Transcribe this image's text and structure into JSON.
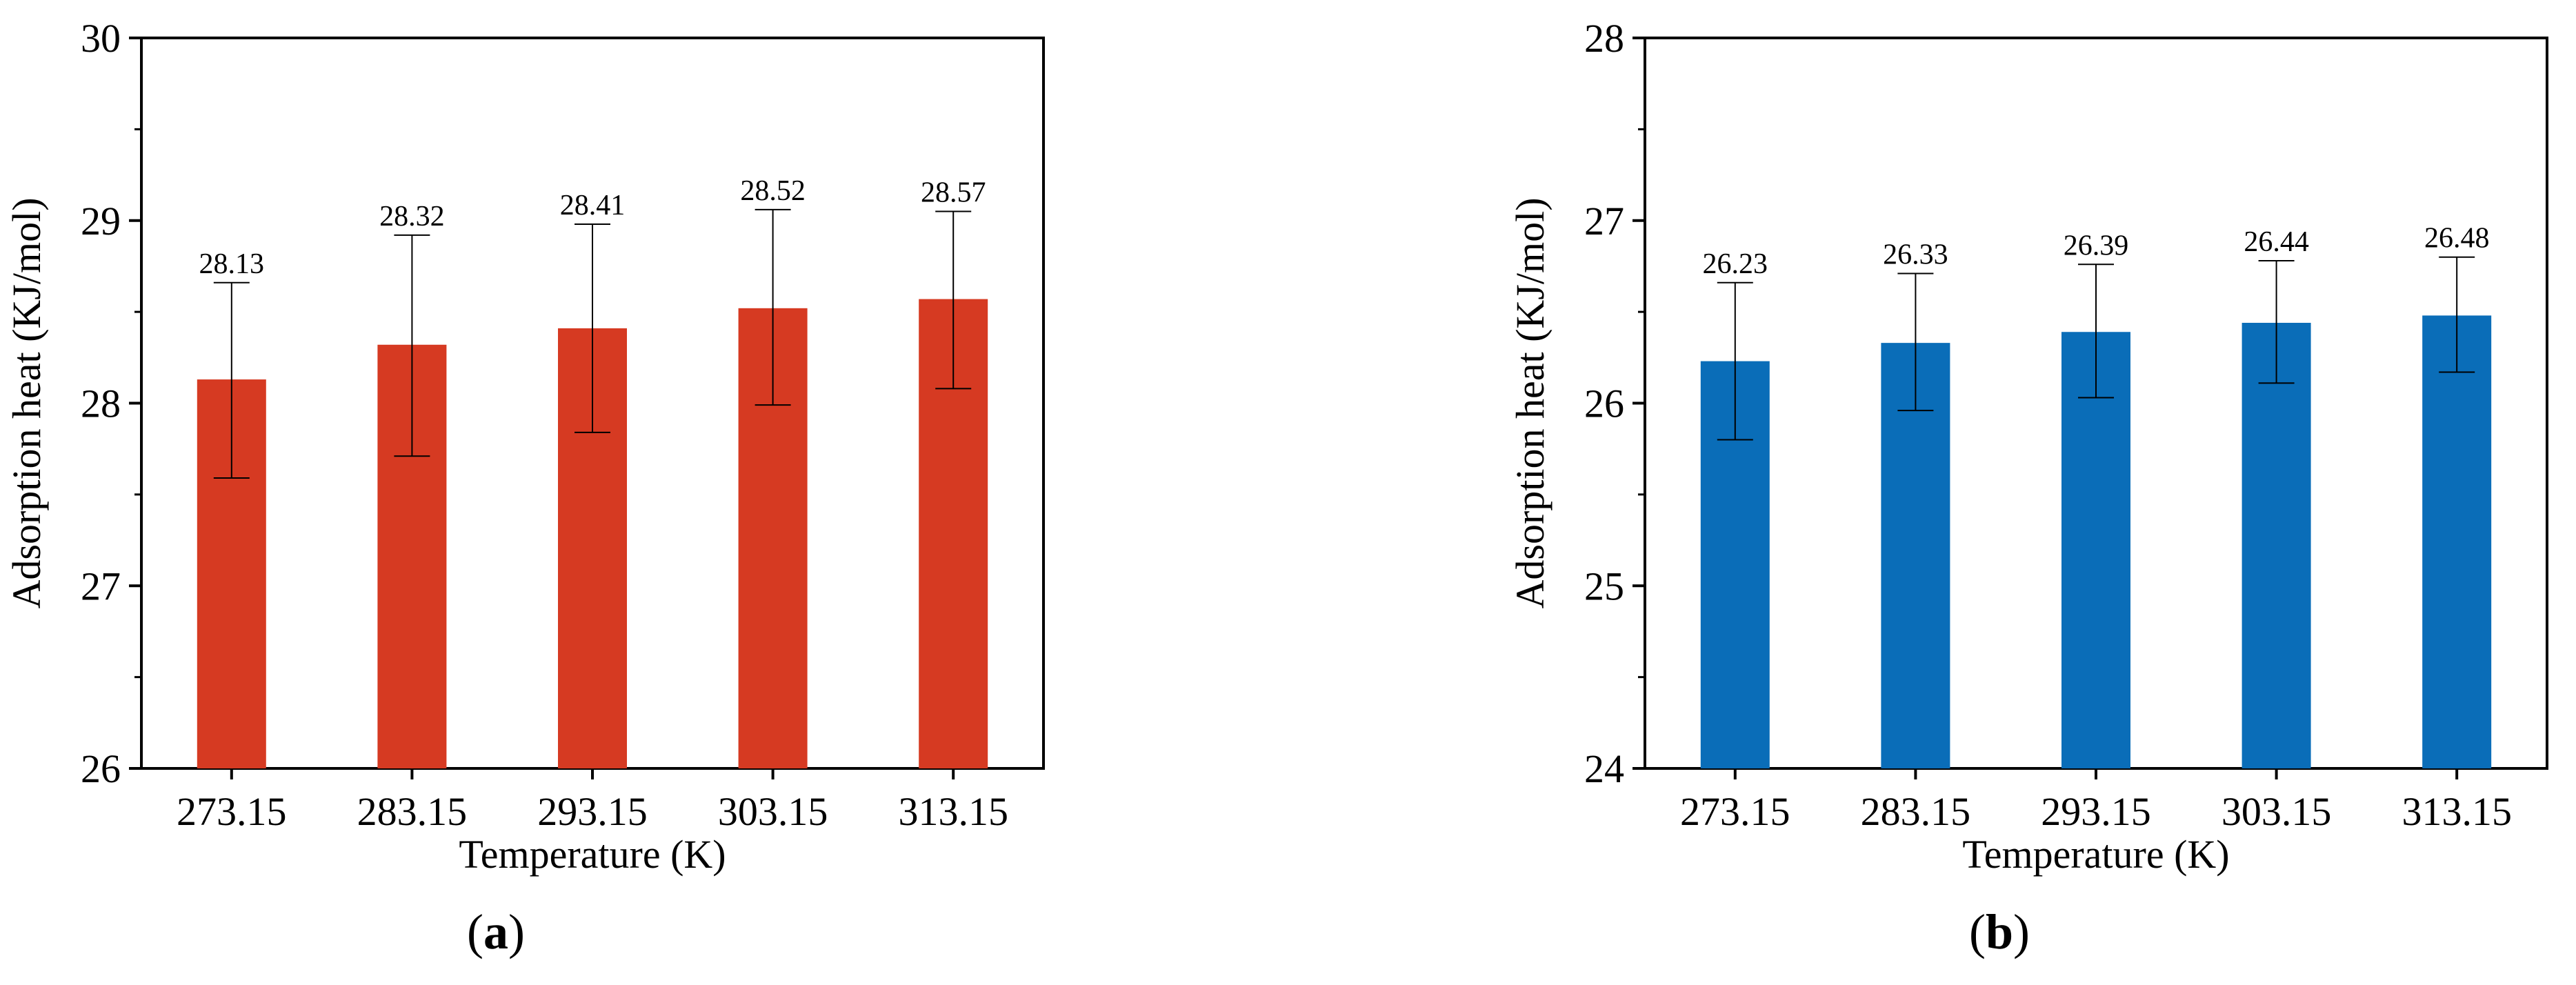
{
  "chart_data": [
    {
      "type": "bar",
      "panel_label": "a",
      "xlabel": "Temperature (K)",
      "ylabel": "Adsorption heat (KJ/mol)",
      "categories": [
        "273.15",
        "283.15",
        "293.15",
        "303.15",
        "313.15"
      ],
      "values": [
        28.13,
        28.32,
        28.41,
        28.52,
        28.57
      ],
      "value_labels": [
        "28.13",
        "28.32",
        "28.41",
        "28.52",
        "28.57"
      ],
      "error_upper": [
        28.66,
        28.92,
        28.98,
        29.06,
        29.05
      ],
      "error_lower": [
        27.59,
        27.71,
        27.84,
        27.99,
        28.08
      ],
      "ylim": [
        26,
        30
      ],
      "yticks": [
        26,
        27,
        28,
        29,
        30
      ],
      "ytick_labels": [
        "26",
        "27",
        "28",
        "29",
        "30"
      ],
      "bar_color": "#d63a22",
      "grid": false,
      "legend": false
    },
    {
      "type": "bar",
      "panel_label": "b",
      "xlabel": "Temperature (K)",
      "ylabel": "Adsorption heat (KJ/mol)",
      "categories": [
        "273.15",
        "283.15",
        "293.15",
        "303.15",
        "313.15"
      ],
      "values": [
        26.23,
        26.33,
        26.39,
        26.44,
        26.48
      ],
      "value_labels": [
        "26.23",
        "26.33",
        "26.39",
        "26.44",
        "26.48"
      ],
      "error_upper": [
        26.66,
        26.71,
        26.76,
        26.78,
        26.8
      ],
      "error_lower": [
        25.8,
        25.96,
        26.03,
        26.11,
        26.17
      ],
      "ylim": [
        24,
        28
      ],
      "yticks": [
        24,
        25,
        26,
        27,
        28
      ],
      "ytick_labels": [
        "24",
        "25",
        "26",
        "27",
        "28"
      ],
      "bar_color": "#0a6db8",
      "grid": false,
      "legend": false
    }
  ]
}
